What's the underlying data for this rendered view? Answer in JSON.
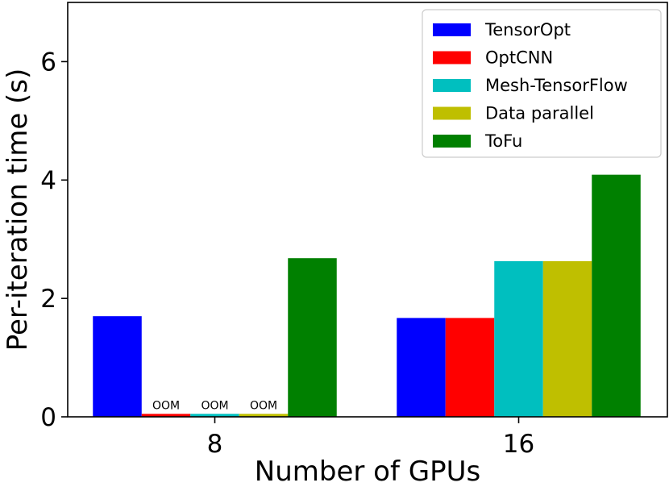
{
  "chart_data": {
    "type": "bar",
    "title": "",
    "xlabel": "Number of GPUs",
    "ylabel": "Per-iteration time (s)",
    "categories": [
      "8",
      "16"
    ],
    "ylim": [
      0,
      7
    ],
    "yticks": [
      0,
      2,
      4,
      6
    ],
    "grid": false,
    "legend_position": "top-right",
    "series": [
      {
        "name": "TensorOpt",
        "color": "#0000ff",
        "values": [
          1.7,
          1.67
        ],
        "labels": [
          "",
          ""
        ]
      },
      {
        "name": "OptCNN",
        "color": "#ff0000",
        "values": [
          0.05,
          1.67
        ],
        "labels": [
          "OOM",
          ""
        ]
      },
      {
        "name": "Mesh-TensorFlow",
        "color": "#00bfbf",
        "values": [
          0.05,
          2.63
        ],
        "labels": [
          "OOM",
          ""
        ]
      },
      {
        "name": "Data parallel",
        "color": "#bfbf00",
        "values": [
          0.05,
          2.63
        ],
        "labels": [
          "OOM",
          ""
        ]
      },
      {
        "name": "ToFu",
        "color": "#008000",
        "values": [
          2.68,
          4.09
        ],
        "labels": [
          "",
          ""
        ]
      }
    ]
  }
}
